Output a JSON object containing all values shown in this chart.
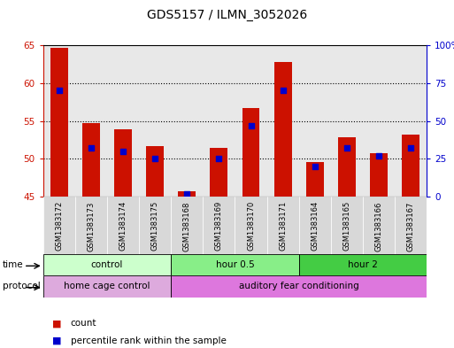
{
  "title": "GDS5157 / ILMN_3052026",
  "samples": [
    "GSM1383172",
    "GSM1383173",
    "GSM1383174",
    "GSM1383175",
    "GSM1383168",
    "GSM1383169",
    "GSM1383170",
    "GSM1383171",
    "GSM1383164",
    "GSM1383165",
    "GSM1383166",
    "GSM1383167"
  ],
  "counts": [
    64.7,
    54.7,
    53.9,
    51.7,
    45.7,
    51.4,
    56.7,
    62.8,
    49.6,
    52.9,
    50.7,
    53.2
  ],
  "percentiles": [
    70,
    32,
    30,
    25,
    2,
    25,
    47,
    70,
    20,
    32,
    27,
    32
  ],
  "ylim": [
    45,
    65
  ],
  "ylim_right": [
    0,
    100
  ],
  "yticks_left": [
    45,
    50,
    55,
    60,
    65
  ],
  "yticks_right": [
    0,
    25,
    50,
    75,
    100
  ],
  "ytick_labels_right": [
    "0",
    "25",
    "50",
    "75",
    "100%"
  ],
  "bar_color": "#cc1100",
  "dot_color": "#0000cc",
  "bar_width": 0.55,
  "time_groups": [
    {
      "label": "control",
      "start": 0,
      "end": 4,
      "color": "#ccffcc"
    },
    {
      "label": "hour 0.5",
      "start": 4,
      "end": 8,
      "color": "#88ee88"
    },
    {
      "label": "hour 2",
      "start": 8,
      "end": 12,
      "color": "#44cc44"
    }
  ],
  "protocol_groups": [
    {
      "label": "home cage control",
      "start": 0,
      "end": 4,
      "color": "#ddaadd"
    },
    {
      "label": "auditory fear conditioning",
      "start": 4,
      "end": 12,
      "color": "#dd77dd"
    }
  ],
  "legend_items": [
    {
      "label": "count",
      "color": "#cc1100"
    },
    {
      "label": "percentile rank within the sample",
      "color": "#0000cc"
    }
  ],
  "grid_color": "#000000",
  "title_fontsize": 10
}
